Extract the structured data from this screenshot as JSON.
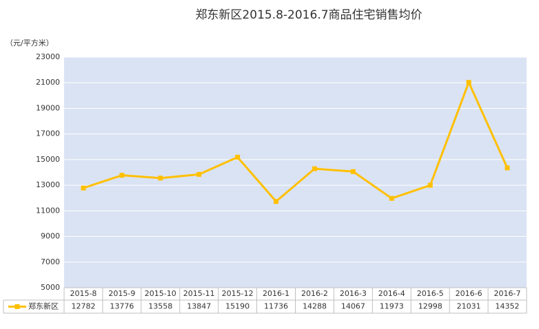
{
  "chart_data": {
    "type": "line",
    "title": "郑东新区2015.8-2016.7商品住宅销售均价",
    "y_axis_label": "（元/平方米）",
    "categories": [
      "2015-8",
      "2015-9",
      "2015-10",
      "2015-11",
      "2015-12",
      "2016-1",
      "2016-2",
      "2016-3",
      "2016-4",
      "2016-5",
      "2016-6",
      "2016-7"
    ],
    "series": [
      {
        "name": "郑东新区",
        "color": "#ffc000",
        "values": [
          12782,
          13776,
          13558,
          13847,
          15190,
          11736,
          14288,
          14067,
          11973,
          12998,
          21031,
          14352
        ]
      }
    ],
    "ylim": [
      5000,
      23000
    ],
    "yticks": [
      5000,
      7000,
      9000,
      11000,
      13000,
      15000,
      17000,
      19000,
      21000,
      23000
    ],
    "grid": true
  }
}
